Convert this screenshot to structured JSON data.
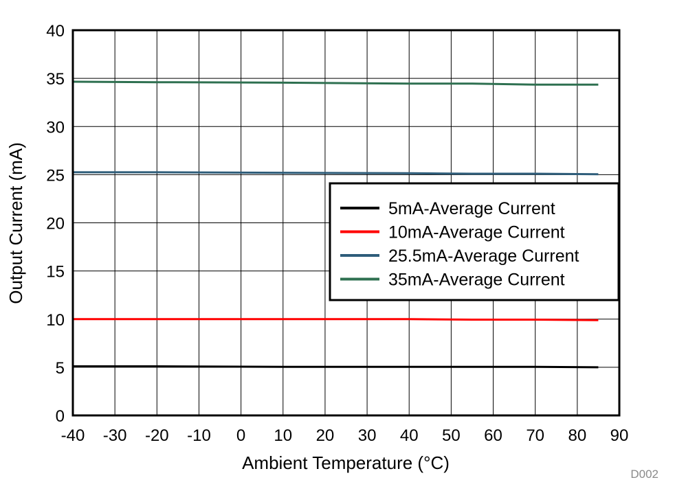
{
  "chart_data": {
    "type": "line",
    "title": "",
    "xlabel": "Ambient Temperature (°C)",
    "ylabel": "Output Current (mA)",
    "xlim": [
      -40,
      90
    ],
    "ylim": [
      0,
      40
    ],
    "x_ticks": [
      "-40",
      "-30",
      "-20",
      "-10",
      "0",
      "10",
      "20",
      "30",
      "40",
      "50",
      "60",
      "70",
      "80",
      "90"
    ],
    "y_ticks": [
      "0",
      "5",
      "10",
      "15",
      "20",
      "25",
      "30",
      "35",
      "40"
    ],
    "grid": true,
    "legend_position": "center-right",
    "x": [
      -40,
      -20,
      10,
      40,
      55,
      70,
      85
    ],
    "series": [
      {
        "name": "5mA-Average Current",
        "color": "#000000",
        "values": [
          5.1,
          5.1,
          5.05,
          5.05,
          5.05,
          5.05,
          5.0
        ]
      },
      {
        "name": "10mA-Average Current",
        "color": "#ff0000",
        "values": [
          10.0,
          10.0,
          10.0,
          10.0,
          9.95,
          9.95,
          9.9
        ]
      },
      {
        "name": "25.5mA-Average Current",
        "color": "#2e5d7a",
        "values": [
          25.25,
          25.25,
          25.2,
          25.15,
          25.1,
          25.1,
          25.05
        ]
      },
      {
        "name": "35mA-Average Current",
        "color": "#2e7050",
        "values": [
          34.65,
          34.6,
          34.55,
          34.45,
          34.45,
          34.35,
          34.35
        ]
      }
    ],
    "figure_id": "D002"
  }
}
